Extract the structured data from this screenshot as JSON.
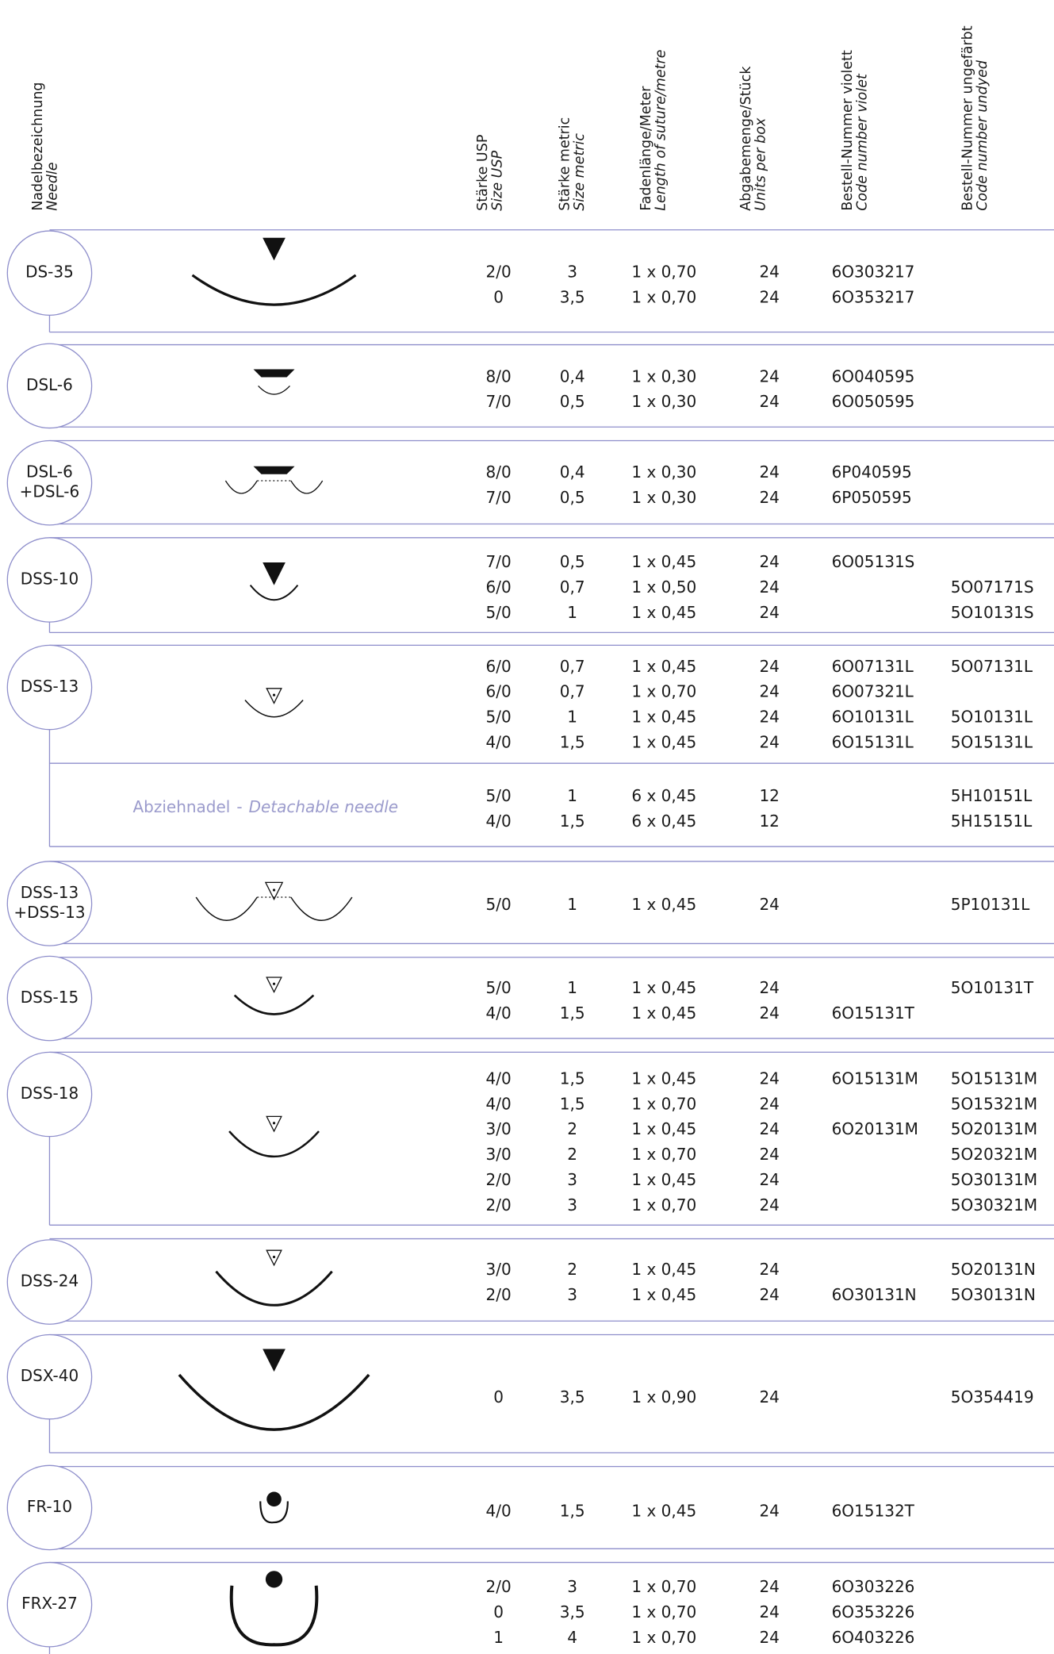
{
  "header": {
    "columns": [
      {
        "de": "Nadelbezeichnung",
        "en": "Needle"
      },
      {
        "de": "Stärke USP",
        "en": "Size USP"
      },
      {
        "de": "Stärke metric",
        "en": "Size metric"
      },
      {
        "de": "Fadenlänge/Meter",
        "en": "Length of suture/metre"
      },
      {
        "de": "Abgabemenge/Stück",
        "en": "Units per box"
      },
      {
        "de": "Bestell-Nummer violett",
        "en": "Code number violet"
      },
      {
        "de": "Bestell-Nummer ungefärbt",
        "en": "Code number undyed"
      }
    ]
  },
  "groups": [
    {
      "needle": [
        "DS-35"
      ],
      "rows": [
        [
          "2/0",
          "3",
          "1 x 0,70",
          "24",
          "6O303217",
          null
        ],
        [
          "0",
          "3,5",
          "1 x 0,70",
          "24",
          "6O353217",
          null
        ]
      ]
    },
    {
      "needle": [
        "DSL-6"
      ],
      "rows": [
        [
          "8/0",
          "0,4",
          "1 x 0,30",
          "24",
          "6O040595",
          null
        ],
        [
          "7/0",
          "0,5",
          "1 x 0,30",
          "24",
          "6O050595",
          null
        ]
      ]
    },
    {
      "needle": [
        "DSL-6",
        "+DSL-6"
      ],
      "rows": [
        [
          "8/0",
          "0,4",
          "1 x 0,30",
          "24",
          "6P040595",
          null
        ],
        [
          "7/0",
          "0,5",
          "1 x 0,30",
          "24",
          "6P050595",
          null
        ]
      ]
    },
    {
      "needle": [
        "DSS-10"
      ],
      "rows": [
        [
          "7/0",
          "0,5",
          "1 x 0,45",
          "24",
          "6O05131S",
          null
        ],
        [
          "6/0",
          "0,7",
          "1 x 0,50",
          "24",
          null,
          "5O07171S"
        ],
        [
          "5/0",
          "1",
          "1 x 0,45",
          "24",
          null,
          "5O10131S"
        ]
      ]
    },
    {
      "needle": [
        "DSS-13"
      ],
      "rows": [
        [
          "6/0",
          "0,7",
          "1 x 0,45",
          "24",
          "6O07131L",
          "5O07131L"
        ],
        [
          "6/0",
          "0,7",
          "1 x 0,70",
          "24",
          "6O07321L",
          null
        ],
        [
          "5/0",
          "1",
          "1 x 0,45",
          "24",
          "6O10131L",
          "5O10131L"
        ],
        [
          "4/0",
          "1,5",
          "1 x 0,45",
          "24",
          "6O15131L",
          "5O15131L"
        ]
      ],
      "sub": {
        "note": {
          "de": "Abziehnadel",
          "sep": "-",
          "en": "Detachable needle"
        },
        "rows": [
          [
            "5/0",
            "1",
            "6 x 0,45",
            "12",
            null,
            "5H10151L"
          ],
          [
            "4/0",
            "1,5",
            "6 x 0,45",
            "12",
            null,
            "5H15151L"
          ]
        ]
      }
    },
    {
      "needle": [
        "DSS-13",
        "+DSS-13"
      ],
      "rows": [
        [
          "5/0",
          "1",
          "1 x 0,45",
          "24",
          null,
          "5P10131L"
        ]
      ]
    },
    {
      "needle": [
        "DSS-15"
      ],
      "rows": [
        [
          "5/0",
          "1",
          "1 x 0,45",
          "24",
          null,
          "5O10131T"
        ],
        [
          "4/0",
          "1,5",
          "1 x 0,45",
          "24",
          "6O15131T",
          null
        ]
      ]
    },
    {
      "needle": [
        "DSS-18"
      ],
      "rows": [
        [
          "4/0",
          "1,5",
          "1 x 0,45",
          "24",
          "6O15131M",
          "5O15131M"
        ],
        [
          "4/0",
          "1,5",
          "1 x 0,70",
          "24",
          null,
          "5O15321M"
        ],
        [
          "3/0",
          "2",
          "1 x 0,45",
          "24",
          "6O20131M",
          "5O20131M"
        ],
        [
          "3/0",
          "2",
          "1 x 0,70",
          "24",
          null,
          "5O20321M"
        ],
        [
          "2/0",
          "3",
          "1 x 0,45",
          "24",
          null,
          "5O30131M"
        ],
        [
          "2/0",
          "3",
          "1 x 0,70",
          "24",
          null,
          "5O30321M"
        ]
      ]
    },
    {
      "needle": [
        "DSS-24"
      ],
      "rows": [
        [
          "3/0",
          "2",
          "1 x 0,45",
          "24",
          null,
          "5O20131N"
        ],
        [
          "2/0",
          "3",
          "1 x 0,45",
          "24",
          "6O30131N",
          "5O30131N"
        ]
      ]
    },
    {
      "needle": [
        "DSX-40"
      ],
      "rows": [
        [
          "0",
          "3,5",
          "1 x 0,90",
          "24",
          null,
          "5O354419"
        ]
      ]
    },
    {
      "needle": [
        "FR-10"
      ],
      "rows": [
        [
          "4/0",
          "1,5",
          "1 x 0,45",
          "24",
          "6O15132T",
          null
        ]
      ]
    },
    {
      "needle": [
        "FRX-27"
      ],
      "rows": [
        [
          "2/0",
          "3",
          "1 x 0,70",
          "24",
          "6O303226",
          null
        ],
        [
          "0",
          "3,5",
          "1 x 0,70",
          "24",
          "6O353226",
          null
        ],
        [
          "1",
          "4",
          "1 x 0,70",
          "24",
          "6O403226",
          null
        ]
      ]
    }
  ]
}
